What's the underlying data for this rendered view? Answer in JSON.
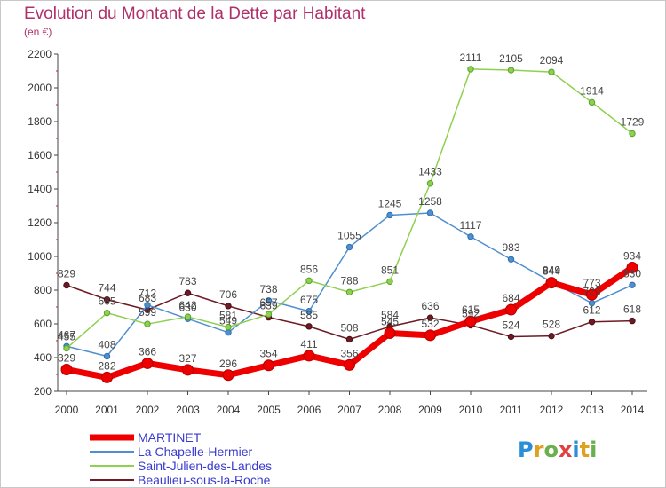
{
  "header": {
    "title": "Evolution du Montant de la Dette par Habitant",
    "subtitle": "(en €)"
  },
  "chart_data": {
    "type": "line",
    "title": "Evolution du Montant de la Dette par Habitant",
    "subtitle": "(en €)",
    "xlabel": "",
    "ylabel": "",
    "x": [
      "2000",
      "2001",
      "2002",
      "2003",
      "2004",
      "2005",
      "2006",
      "2007",
      "2008",
      "2009",
      "2010",
      "2011",
      "2012",
      "2013",
      "2014"
    ],
    "ylim": [
      200,
      2200
    ],
    "yticks": [
      200,
      400,
      600,
      800,
      1000,
      1200,
      1400,
      1600,
      1800,
      2000,
      2200
    ],
    "grid": false,
    "legend_position": "bottom-left",
    "series": [
      {
        "name": "MARTINET",
        "color": "#ee0000",
        "values": [
          329,
          282,
          366,
          327,
          296,
          354,
          411,
          356,
          545,
          532,
          615,
          684,
          844,
          773,
          934
        ]
      },
      {
        "name": "La Chapelle-Hermier",
        "color": "#4f8fcf",
        "values": [
          467,
          408,
          712,
          630,
          549,
          738,
          675,
          1055,
          1245,
          1258,
          1117,
          983,
          849,
          723,
          830
        ]
      },
      {
        "name": "Saint-Julien-des-Landes",
        "color": "#8ed04f",
        "values": [
          455,
          665,
          599,
          642,
          581,
          657,
          856,
          788,
          851,
          1433,
          2111,
          2105,
          2094,
          1914,
          1729
        ]
      },
      {
        "name": "Beaulieu-sous-la-Roche",
        "color": "#6e1a24",
        "values": [
          829,
          744,
          683,
          783,
          706,
          639,
          585,
          508,
          584,
          636,
          592,
          524,
          528,
          612,
          618
        ]
      }
    ]
  },
  "legend": {
    "items": [
      {
        "label": "MARTINET"
      },
      {
        "label": "La Chapelle-Hermier"
      },
      {
        "label": "Saint-Julien-des-Landes"
      },
      {
        "label": "Beaulieu-sous-la-Roche"
      }
    ]
  },
  "logo": {
    "text": "Proxiti"
  }
}
